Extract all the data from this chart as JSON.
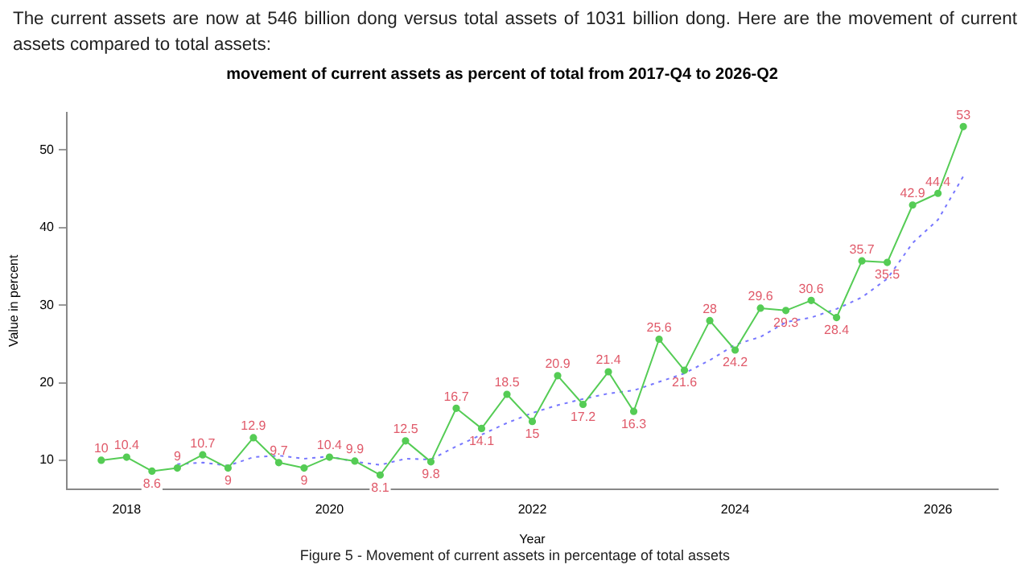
{
  "chart_data": {
    "type": "line",
    "title": "movement of current assets as percent of total from 2017-Q4 to 2026-Q2",
    "xlabel": "Year",
    "ylabel": "Value in percent",
    "annotations": [
      "The current assets are now at 546 billion dong versus total assets of 1031 billion dong. Here are the movement of current assets compared to total assets:",
      "Figure 5 - Movement of current assets in percentage of total assets"
    ],
    "x": [
      2017.75,
      2018,
      2018.25,
      2018.5,
      2018.75,
      2019,
      2019.25,
      2019.5,
      2019.75,
      2020,
      2020.25,
      2020.5,
      2020.75,
      2021,
      2021.25,
      2021.5,
      2021.75,
      2022,
      2022.25,
      2022.5,
      2022.75,
      2023,
      2023.25,
      2023.5,
      2023.75,
      2024,
      2024.25,
      2024.5,
      2024.75,
      2025,
      2025.25,
      2025.5,
      2025.75,
      2026,
      2026.25
    ],
    "xlim": [
      2017.41,
      2026.59
    ],
    "xticks": [
      2018,
      2020,
      2022,
      2024,
      2026
    ],
    "ylim": [
      6.3,
      54.8
    ],
    "yticks": [
      10,
      20,
      30,
      40,
      50
    ],
    "grid": false,
    "legend": false,
    "series": [
      {
        "color": "#55cc55",
        "marker": "circle",
        "line_style": "solid",
        "values": [
          10,
          10.4,
          8.6,
          9,
          10.7,
          9,
          12.9,
          9.7,
          9,
          10.4,
          9.9,
          8.1,
          12.5,
          9.8,
          16.7,
          14.1,
          18.5,
          15,
          20.9,
          17.2,
          21.4,
          16.3,
          25.6,
          21.6,
          28,
          24.2,
          29.6,
          29.3,
          30.6,
          28.4,
          35.7,
          35.5,
          42.9,
          44.4,
          53
        ],
        "value_labels": [
          "10",
          "10.4",
          "8.6",
          "9",
          "10.7",
          "9",
          "12.9",
          "9.7",
          "9",
          "10.4",
          "9.9",
          "8.1",
          "12.5",
          "9.8",
          "16.7",
          "14.1",
          "18.5",
          "15",
          "20.9",
          "17.2",
          "21.4",
          "16.3",
          "25.6",
          "21.6",
          "28",
          "24.2",
          "29.6",
          "29.3",
          "30.6",
          "28.4",
          "35.7",
          "35.5",
          "42.9",
          "44.4",
          "53"
        ]
      },
      {
        "color": "#7777ff",
        "marker": "none",
        "line_style": "dotted",
        "values": [
          null,
          null,
          null,
          9.5,
          9.7,
          9.3,
          10.4,
          10.6,
          10.2,
          10.5,
          9.8,
          9.4,
          10.2,
          10.1,
          11.8,
          13.3,
          14.8,
          16.1,
          17.1,
          17.9,
          18.6,
          19,
          20.1,
          21.2,
          22.9,
          24.9,
          25.9,
          27.8,
          28.4,
          29.5,
          31,
          33.4,
          38,
          41,
          46.6
        ]
      }
    ]
  }
}
